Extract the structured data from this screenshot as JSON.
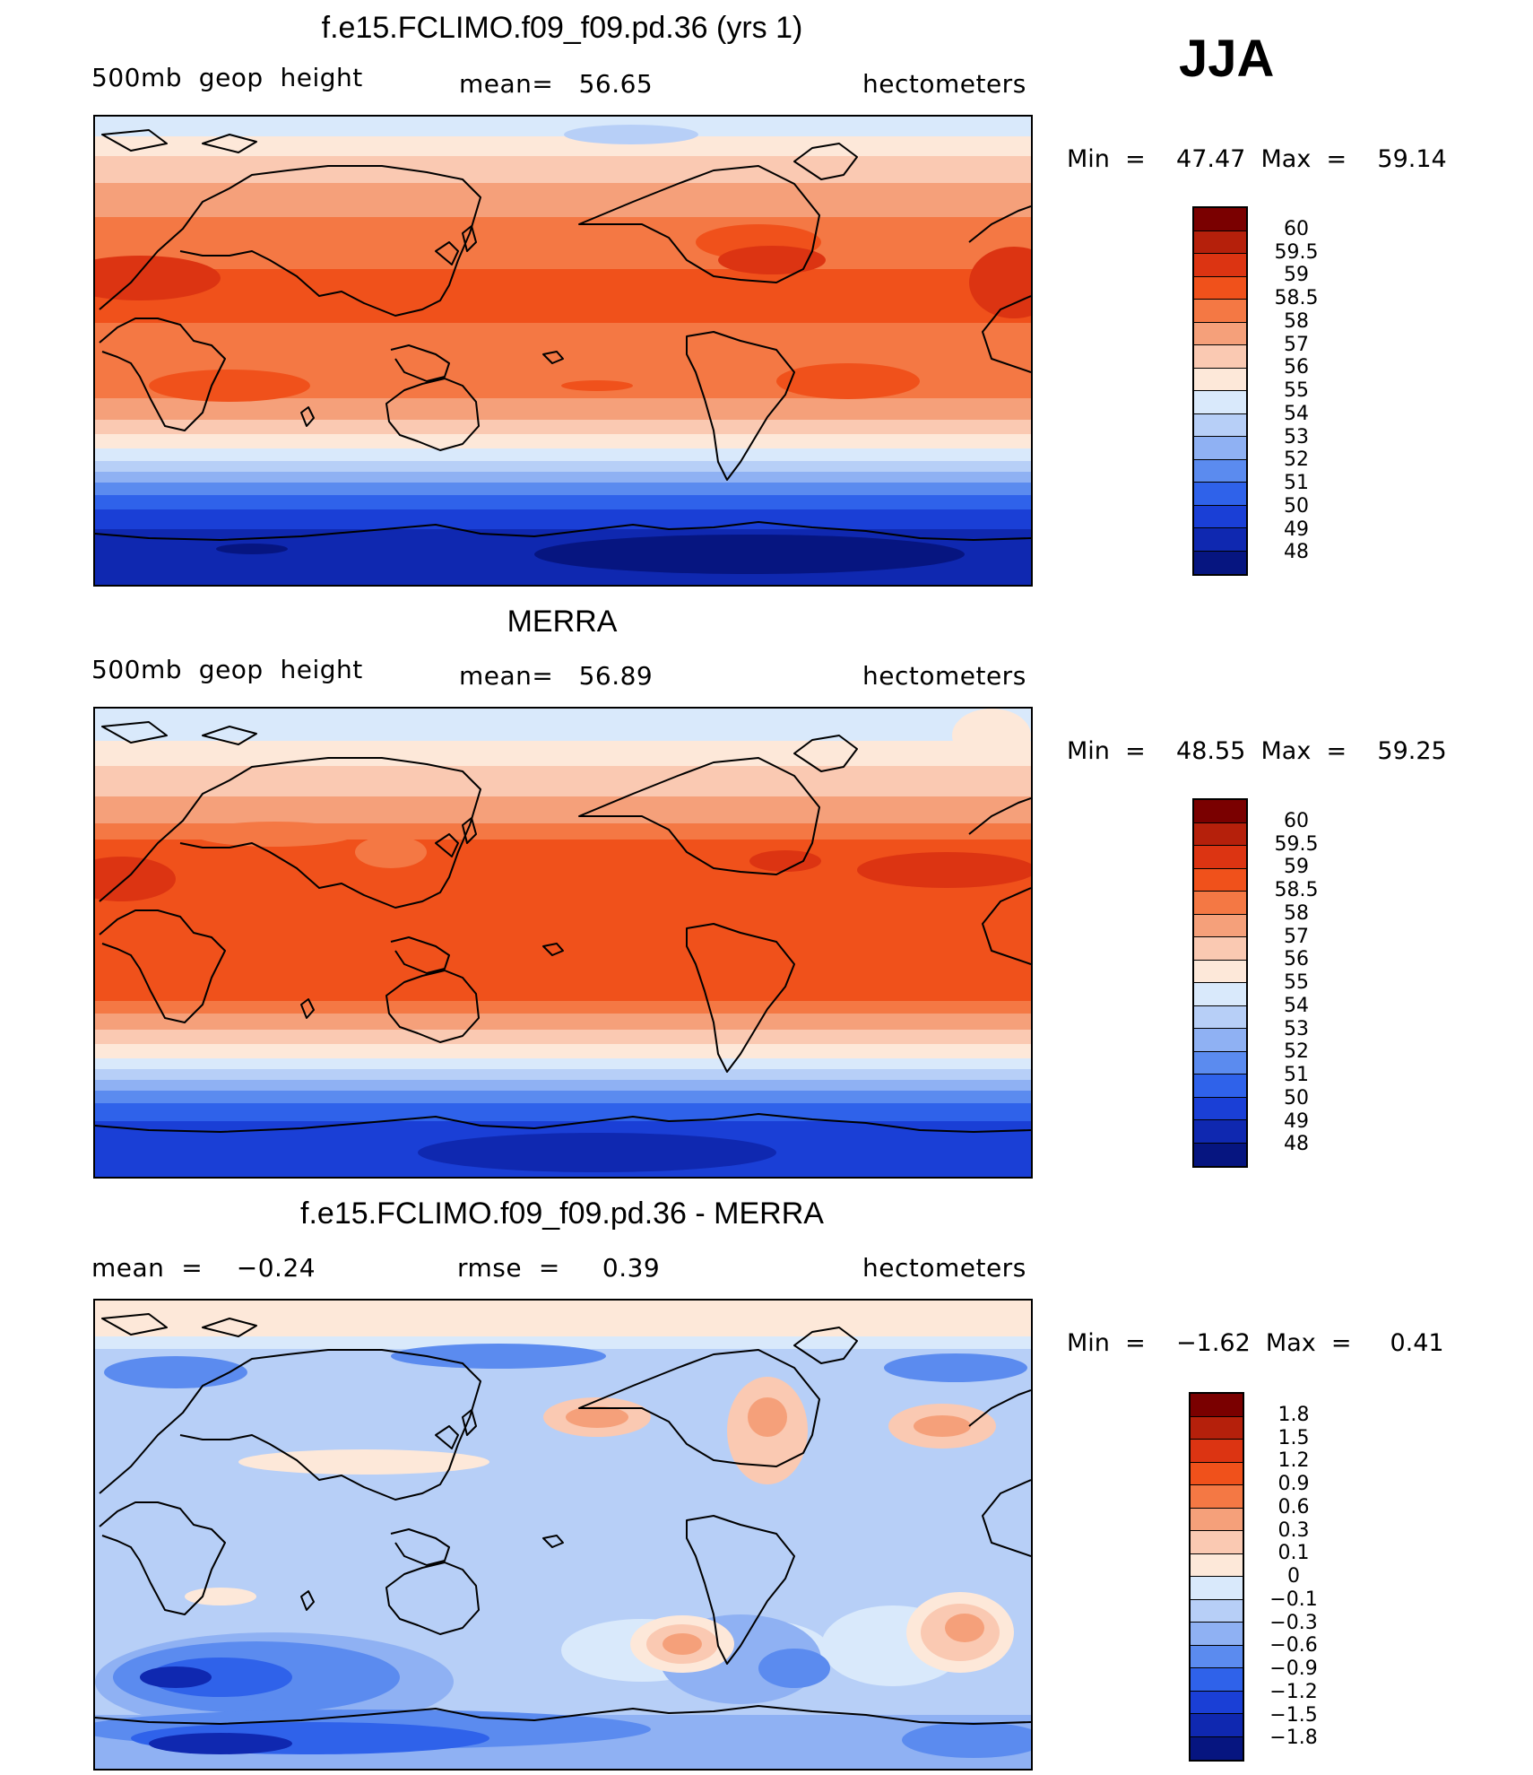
{
  "season": "JJA",
  "panels": [
    {
      "title": "f.e15.FCLIMO.f09_f09.pd.36 (yrs 1)",
      "left_label": "500mb  geop  height",
      "center_label": "mean=   56.65",
      "right_label": "hectometers",
      "minmax_label": "Min  =    47.47  Max  =    59.14",
      "colorbar_labels": [
        "60",
        "59.5",
        "59",
        "58.5",
        "58",
        "57",
        "56",
        "55",
        "54",
        "53",
        "52",
        "51",
        "50",
        "49",
        "48"
      ],
      "colorbar_colors": [
        "#7a0000",
        "#b5200b",
        "#dc3412",
        "#f0511b",
        "#f47844",
        "#f5a07a",
        "#fac9b2",
        "#fde8d9",
        "#d9e9fb",
        "#b7cff7",
        "#8fb1f3",
        "#5b8bef",
        "#2f62ea",
        "#1a3fd6",
        "#0f28b0",
        "#061580"
      ],
      "min": 47.47,
      "max": 59.14,
      "mean": 56.65,
      "units": "hectometers"
    },
    {
      "title": "MERRA",
      "left_label": "500mb  geop  height",
      "center_label": "mean=   56.89",
      "right_label": "hectometers",
      "minmax_label": "Min  =    48.55  Max  =    59.25",
      "colorbar_labels": [
        "60",
        "59.5",
        "59",
        "58.5",
        "58",
        "57",
        "56",
        "55",
        "54",
        "53",
        "52",
        "51",
        "50",
        "49",
        "48"
      ],
      "colorbar_colors": [
        "#7a0000",
        "#b5200b",
        "#dc3412",
        "#f0511b",
        "#f47844",
        "#f5a07a",
        "#fac9b2",
        "#fde8d9",
        "#d9e9fb",
        "#b7cff7",
        "#8fb1f3",
        "#5b8bef",
        "#2f62ea",
        "#1a3fd6",
        "#0f28b0",
        "#061580"
      ],
      "min": 48.55,
      "max": 59.25,
      "mean": 56.89,
      "units": "hectometers"
    },
    {
      "title": "f.e15.FCLIMO.f09_f09.pd.36 - MERRA",
      "left_label": "mean  =    −0.24",
      "center_label": "rmse  =     0.39",
      "right_label": "hectometers",
      "minmax_label": "Min  =    −1.62  Max  =     0.41",
      "colorbar_labels": [
        "1.8",
        "1.5",
        "1.2",
        "0.9",
        "0.6",
        "0.3",
        "0.1",
        "0",
        "−0.1",
        "−0.3",
        "−0.6",
        "−0.9",
        "−1.2",
        "−1.5",
        "−1.8"
      ],
      "colorbar_colors": [
        "#7a0000",
        "#b5200b",
        "#dc3412",
        "#f0511b",
        "#f47844",
        "#f5a07a",
        "#fac9b2",
        "#fde8d9",
        "#d9e9fb",
        "#b7cff7",
        "#8fb1f3",
        "#5b8bef",
        "#2f62ea",
        "#1a3fd6",
        "#0f28b0",
        "#061580"
      ],
      "min": -1.62,
      "max": 0.41,
      "mean": -0.24,
      "rmse": 0.39,
      "units": "hectometers"
    }
  ]
}
